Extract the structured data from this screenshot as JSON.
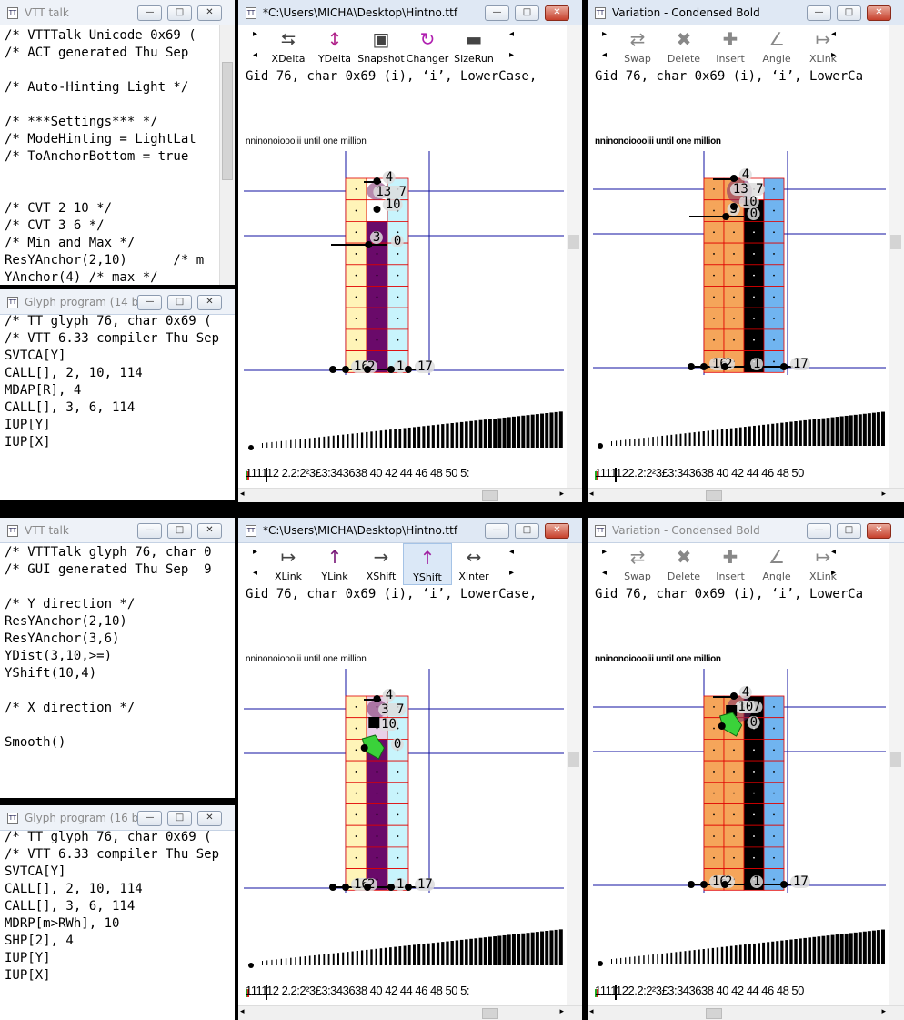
{
  "top_left_vtt": {
    "title": "VTT talk",
    "lines": [
      "/* VTTTalk Unicode 0x69 (",
      "/* ACT generated Thu Sep",
      "",
      "/* Auto-Hinting Light */",
      "",
      "/* ***Settings*** */",
      "/* ModeHinting = LightLat",
      "/* ToAnchorBottom = true",
      "",
      "",
      "/* CVT 2 10 */",
      "/* CVT 3 6 */",
      "/* Min and Max */",
      "ResYAnchor(2,10)      /* m",
      "YAnchor(4) /* max */"
    ]
  },
  "top_left_glyph": {
    "title": "Glyph program (14 b...",
    "lines": [
      "/* TT glyph 76, char 0x69 (",
      "/* VTT 6.33 compiler Thu Sep",
      "SVTCA[Y]",
      "CALL[], 2, 10, 114",
      "MDAP[R], 4",
      "CALL[], 3, 6, 114",
      "IUP[Y]",
      "IUP[X]"
    ]
  },
  "bottom_left_vtt": {
    "title": "VTT talk",
    "lines": [
      "/* VTTTalk glyph 76, char 0",
      "/* GUI generated Thu Sep  9",
      "",
      "/* Y direction */",
      "ResYAnchor(2,10)",
      "ResYAnchor(3,6)",
      "YDist(3,10,>=)",
      "YShift(10,4)",
      "",
      "/* X direction */",
      "",
      "Smooth()"
    ]
  },
  "bottom_left_glyph": {
    "title": "Glyph program (16 b...",
    "lines": [
      "/* TT glyph 76, char 0x69 (",
      "/* VTT 6.33 compiler Thu Sep",
      "SVTCA[Y]",
      "CALL[], 2, 10, 114",
      "CALL[], 3, 6, 114",
      "MDRP[m>RWh], 10",
      "SHP[2], 4",
      "IUP[Y]",
      "IUP[X]"
    ]
  },
  "top_main": {
    "title": "*C:\\Users\\MICHA\\Desktop\\Hintno.ttf",
    "tools": [
      {
        "label": "XDelta",
        "icon": "xdelta-icon"
      },
      {
        "label": "YDelta",
        "icon": "ydelta-icon"
      },
      {
        "label": "Snapshot",
        "icon": "camera-icon"
      },
      {
        "label": "Changer",
        "icon": "changer-icon"
      },
      {
        "label": "SizeRun",
        "icon": "sizerun-icon"
      }
    ],
    "gid": "Gid 76, char 0x69 (i), ‘i’, LowerCase,",
    "sample": "nninonoioooiii  until one million",
    "ruler": "111112 2.2:2²3£3:343638 40 42 44 46 48 50 5:"
  },
  "top_var": {
    "title": "Variation - Condensed Bold",
    "tools": [
      {
        "label": "Swap",
        "icon": "swap-icon"
      },
      {
        "label": "Delete",
        "icon": "delete-icon"
      },
      {
        "label": "Insert",
        "icon": "insert-icon"
      },
      {
        "label": "Angle",
        "icon": "angle-icon"
      },
      {
        "label": "XLink",
        "icon": "xlink-icon"
      }
    ],
    "gid": "Gid 76, char 0x69 (i), ‘i’, LowerCa",
    "sample": "nninonoioooiii  until one million",
    "ruler": "1111122.2:2²3£3:343638 40 42 44 46 48 50"
  },
  "bottom_main": {
    "title": "*C:\\Users\\MICHA\\Desktop\\Hintno.ttf",
    "tools": [
      {
        "label": "XLink",
        "icon": "xlink-icon"
      },
      {
        "label": "YLink",
        "icon": "ylink-icon"
      },
      {
        "label": "XShift",
        "icon": "xshift-icon"
      },
      {
        "label": "YShift",
        "icon": "yshift-icon"
      },
      {
        "label": "XInter",
        "icon": "xinter-icon"
      }
    ],
    "gid": "Gid 76, char 0x69 (i), ‘i’, LowerCase,",
    "sample": "nninonoioooiii  until one million",
    "ruler": "111112 2.2:2²3£3:343638 40 42 44 46 48 50 5:"
  },
  "bottom_var": {
    "title": "Variation - Condensed Bold",
    "tools": [
      {
        "label": "Swap",
        "icon": "swap-icon"
      },
      {
        "label": "Delete",
        "icon": "delete-icon"
      },
      {
        "label": "Insert",
        "icon": "insert-icon"
      },
      {
        "label": "Angle",
        "icon": "angle-icon"
      },
      {
        "label": "XLink",
        "icon": "xlink-icon"
      }
    ],
    "gid": "Gid 76, char 0x69 (i), ‘i’, LowerCa",
    "sample": "nninonoioooiii  until one million",
    "ruler": "1111122.2:2²3£3:343638 40 42 44 46 48 50"
  },
  "point_labels": {
    "p4": "4",
    "p13_7": "13 7",
    "p3_7": "3 7",
    "p10": "10",
    "p3": "3",
    "p0": "0",
    "p16": "16",
    "p2": "2",
    "p1": "1",
    "p17": "17"
  },
  "win_buttons": {
    "min": "—",
    "max": "□",
    "close": "✕"
  },
  "colors": {
    "title_active": "#dfe8f4",
    "blue_line": "#1010a0",
    "purple_stem": "#6a0a6a",
    "pixel_grid": "#e00000",
    "yellow_cell": "#fff4b8",
    "cyan_cell": "#c8f4fc",
    "orange_cell": "#f5a55a",
    "blue_cell": "#70b4f0",
    "green_arrow": "#3ad23a"
  }
}
